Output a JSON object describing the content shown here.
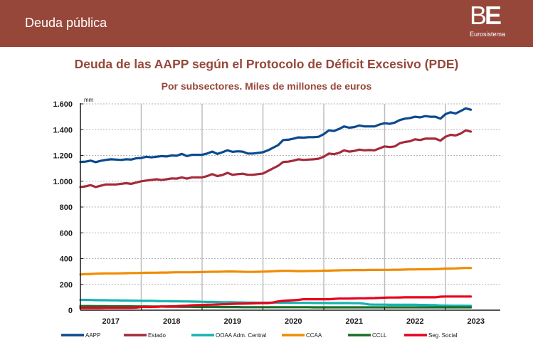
{
  "header": {
    "title": "Deuda pública",
    "logo": {
      "mark_b": "B",
      "mark_e": "E",
      "subtitle": "Eurosistema"
    }
  },
  "colors": {
    "header_bg": "#96473a",
    "title_text": "#96473a"
  },
  "chart_data": {
    "type": "line",
    "title": "Deuda de las AAPP según el Protocolo de Déficit Excesivo (PDE)",
    "subtitle": "Por subsectores. Miles de millones de euros",
    "ylabel": "mm",
    "xlabel": "",
    "ylim": [
      0,
      1600
    ],
    "yticks": [
      0,
      200,
      400,
      600,
      800,
      1000,
      1200,
      1400,
      1600
    ],
    "ytick_labels": [
      "0",
      "200",
      "400",
      "600",
      "800",
      "1.000",
      "1.200",
      "1.400",
      "1.600"
    ],
    "xticks": [
      "2017",
      "2018",
      "2019",
      "2020",
      "2021",
      "2022",
      "2023"
    ],
    "x_range": [
      "2017-01",
      "2023-12"
    ],
    "frequency": "monthly",
    "x_start": "2017-01",
    "grid": {
      "horizontal": "dotted",
      "vertical": "year-boundaries"
    },
    "legend_position": "bottom",
    "series": [
      {
        "name": "AAPP",
        "color": "#0b4a8f",
        "values": [
          1150,
          1152,
          1160,
          1148,
          1158,
          1165,
          1170,
          1168,
          1165,
          1170,
          1168,
          1178,
          1180,
          1190,
          1185,
          1190,
          1195,
          1192,
          1200,
          1198,
          1212,
          1195,
          1205,
          1205,
          1205,
          1215,
          1230,
          1212,
          1225,
          1240,
          1228,
          1232,
          1230,
          1215,
          1215,
          1220,
          1225,
          1240,
          1260,
          1280,
          1320,
          1322,
          1330,
          1340,
          1338,
          1342,
          1342,
          1345,
          1365,
          1395,
          1390,
          1405,
          1425,
          1415,
          1420,
          1432,
          1425,
          1425,
          1425,
          1440,
          1450,
          1445,
          1455,
          1475,
          1485,
          1490,
          1500,
          1495,
          1505,
          1500,
          1500,
          1485,
          1520,
          1535,
          1525,
          1545,
          1565,
          1555
        ]
      },
      {
        "name": "Estado",
        "color": "#a52a3a",
        "values": [
          955,
          960,
          970,
          955,
          965,
          975,
          975,
          975,
          980,
          985,
          980,
          990,
          1000,
          1005,
          1010,
          1015,
          1010,
          1015,
          1022,
          1020,
          1030,
          1020,
          1030,
          1030,
          1030,
          1040,
          1055,
          1040,
          1048,
          1065,
          1050,
          1055,
          1058,
          1050,
          1050,
          1055,
          1060,
          1080,
          1100,
          1120,
          1150,
          1152,
          1160,
          1170,
          1165,
          1168,
          1170,
          1175,
          1190,
          1215,
          1210,
          1220,
          1240,
          1230,
          1235,
          1245,
          1240,
          1242,
          1240,
          1255,
          1270,
          1265,
          1270,
          1295,
          1305,
          1310,
          1325,
          1320,
          1330,
          1330,
          1330,
          1315,
          1345,
          1360,
          1355,
          1370,
          1395,
          1385
        ]
      },
      {
        "name": "OOAA Adm. Central",
        "color": "#14b3b0",
        "values": [
          80,
          80,
          79,
          78,
          77,
          77,
          76,
          76,
          75,
          75,
          74,
          74,
          73,
          72,
          72,
          71,
          70,
          70,
          69,
          69,
          68,
          68,
          67,
          66,
          65,
          64,
          64,
          63,
          62,
          61,
          61,
          60,
          60,
          59,
          59,
          58,
          58,
          58,
          58,
          58,
          58,
          58,
          57,
          57,
          57,
          57,
          56,
          56,
          56,
          55,
          55,
          55,
          55,
          55,
          54,
          54,
          50,
          44,
          43,
          43,
          43,
          42,
          42,
          42,
          42,
          42,
          42,
          41,
          41,
          40,
          40,
          36,
          36,
          35,
          35,
          35,
          34,
          34
        ]
      },
      {
        "name": "CCAA",
        "color": "#f08c00",
        "values": [
          277,
          279,
          281,
          283,
          284,
          285,
          285,
          285,
          286,
          287,
          288,
          288,
          289,
          290,
          291,
          291,
          292,
          292,
          293,
          294,
          294,
          294,
          294,
          295,
          296,
          297,
          298,
          298,
          299,
          300,
          300,
          299,
          298,
          297,
          297,
          298,
          299,
          300,
          302,
          304,
          305,
          305,
          304,
          303,
          303,
          304,
          304,
          305,
          306,
          307,
          308,
          309,
          310,
          310,
          311,
          311,
          311,
          312,
          312,
          312,
          313,
          313,
          314,
          314,
          315,
          316,
          316,
          317,
          317,
          318,
          318,
          320,
          322,
          323,
          324,
          326,
          327,
          327
        ]
      },
      {
        "name": "CCLL",
        "color": "#1a6e2a",
        "values": [
          32,
          32,
          32,
          31,
          31,
          31,
          30,
          30,
          30,
          30,
          30,
          29,
          29,
          29,
          28,
          28,
          28,
          27,
          27,
          27,
          26,
          26,
          26,
          25,
          25,
          25,
          25,
          25,
          24,
          24,
          24,
          24,
          23,
          23,
          23,
          23,
          23,
          23,
          23,
          23,
          23,
          23,
          23,
          23,
          23,
          23,
          22,
          22,
          22,
          22,
          22,
          22,
          22,
          22,
          22,
          22,
          22,
          22,
          22,
          22,
          22,
          22,
          22,
          22,
          22,
          22,
          22,
          22,
          22,
          22,
          22,
          22,
          22,
          22,
          22,
          22,
          22,
          22
        ]
      },
      {
        "name": "Seg. Social",
        "color": "#e8001c",
        "values": [
          17,
          17,
          17,
          17,
          17,
          18,
          18,
          18,
          18,
          19,
          19,
          20,
          25,
          25,
          25,
          26,
          28,
          29,
          30,
          31,
          33,
          35,
          38,
          40,
          41,
          42,
          43,
          44,
          46,
          47,
          49,
          50,
          51,
          52,
          53,
          54,
          55,
          55,
          60,
          68,
          72,
          75,
          77,
          80,
          85,
          85,
          85,
          85,
          85,
          85,
          88,
          90,
          90,
          90,
          91,
          92,
          92,
          93,
          94,
          96,
          97,
          98,
          98,
          99,
          100,
          100,
          100,
          100,
          100,
          100,
          100,
          105,
          106,
          106,
          106,
          106,
          106,
          106
        ]
      }
    ]
  }
}
